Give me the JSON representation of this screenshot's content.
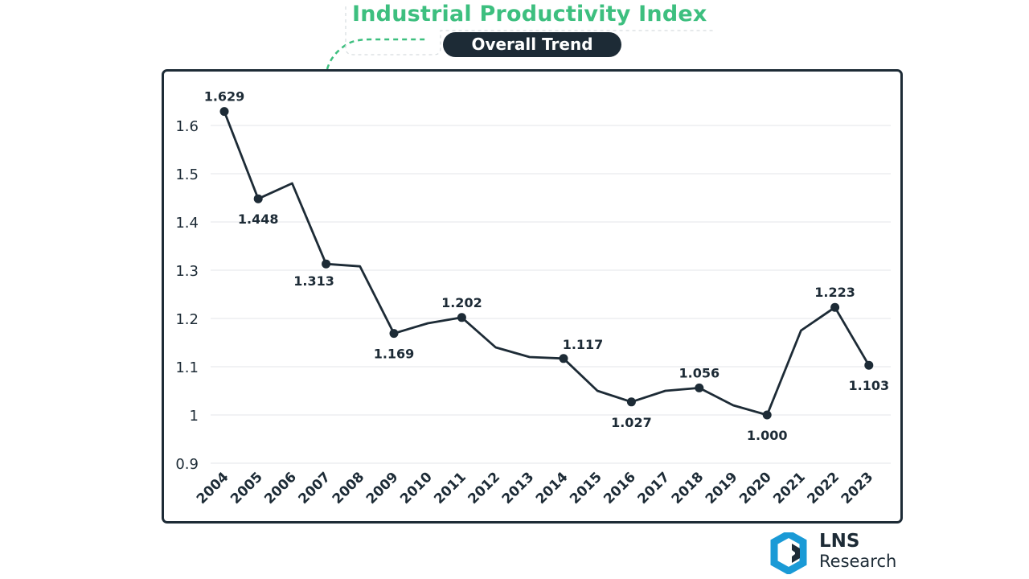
{
  "chart_data": {
    "type": "line",
    "title": "Industrial Productivity Index",
    "subtitle": "Overall Trend",
    "xlabel": "",
    "ylabel": "",
    "ylim": [
      0.9,
      1.7
    ],
    "y_ticks": [
      0.9,
      1.0,
      1.1,
      1.2,
      1.3,
      1.4,
      1.5,
      1.6
    ],
    "y_tick_labels": [
      "0.9",
      "1",
      "1.1",
      "1.2",
      "1.3",
      "1.4",
      "1.5",
      "1.6"
    ],
    "grid": "horizontal",
    "categories": [
      "2004",
      "2005",
      "2006",
      "2007",
      "2008",
      "2009",
      "2010",
      "2011",
      "2012",
      "2013",
      "2014",
      "2015",
      "2016",
      "2017",
      "2018",
      "2019",
      "2020",
      "2021",
      "2022",
      "2023"
    ],
    "series": [
      {
        "values": [
          1.629,
          1.448,
          1.48,
          1.313,
          1.308,
          1.169,
          1.19,
          1.202,
          1.14,
          1.12,
          1.117,
          1.05,
          1.027,
          1.05,
          1.056,
          1.02,
          1.0,
          1.175,
          1.223,
          1.103
        ],
        "color": "#1d2b36"
      }
    ],
    "markers": [
      {
        "index": 0,
        "label": "1.629",
        "position": "above"
      },
      {
        "index": 1,
        "label": "1.448",
        "position": "below"
      },
      {
        "index": 3,
        "label": "1.313",
        "position": "below-left"
      },
      {
        "index": 5,
        "label": "1.169",
        "position": "below"
      },
      {
        "index": 7,
        "label": "1.202",
        "position": "above"
      },
      {
        "index": 10,
        "label": "1.117",
        "position": "above-right"
      },
      {
        "index": 12,
        "label": "1.027",
        "position": "below"
      },
      {
        "index": 14,
        "label": "1.056",
        "position": "above"
      },
      {
        "index": 16,
        "label": "1.000",
        "position": "below"
      },
      {
        "index": 18,
        "label": "1.223",
        "position": "above"
      },
      {
        "index": 19,
        "label": "1.103",
        "position": "below"
      }
    ]
  },
  "colors": {
    "title": "#3dbf7f",
    "dark": "#1d2b36",
    "grid": "#e3e6e8",
    "logo_accent": "#1a9ad6"
  },
  "logo": {
    "name": "LNS",
    "subtitle": "Research"
  }
}
